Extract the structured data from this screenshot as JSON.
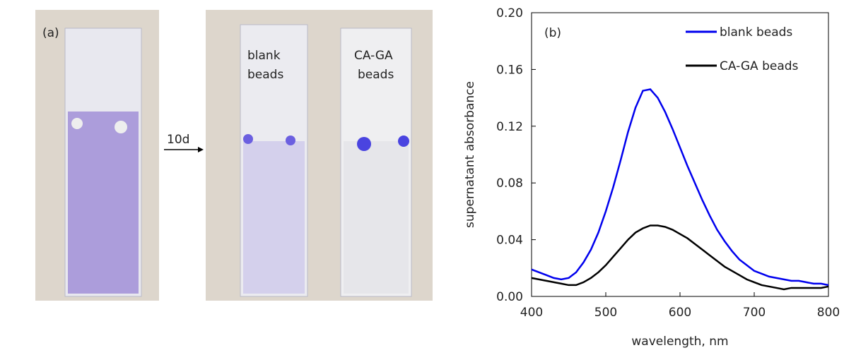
{
  "panel_a": {
    "label": "(a)",
    "arrow_label": "10d",
    "sample_1": [
      "blank",
      "beads"
    ],
    "sample_2": [
      "CA-GA",
      "beads"
    ]
  },
  "chart_data": {
    "type": "line",
    "panel_label": "(b)",
    "x_label": "wavelength, nm",
    "y_label": "supernatant absorbance",
    "xlim": [
      400,
      800
    ],
    "xticks": [
      400,
      500,
      600,
      700,
      800
    ],
    "ylim": [
      0,
      0.2
    ],
    "yticks": [
      {
        "value": 0,
        "label": "0.00"
      },
      {
        "value": 0.04,
        "label": "0.04"
      },
      {
        "value": 0.08,
        "label": "0.08"
      },
      {
        "value": 0.12,
        "label": "0.12"
      },
      {
        "value": 0.16,
        "label": "0.16"
      },
      {
        "value": 0.2,
        "label": "0.20"
      }
    ],
    "legend": "upper right",
    "x": [
      400,
      410,
      420,
      430,
      440,
      450,
      460,
      470,
      480,
      490,
      500,
      510,
      520,
      530,
      540,
      550,
      560,
      570,
      580,
      590,
      600,
      610,
      620,
      630,
      640,
      650,
      660,
      670,
      680,
      690,
      700,
      710,
      720,
      730,
      740,
      750,
      760,
      770,
      780,
      790,
      800
    ],
    "series": [
      {
        "name": "blank beads",
        "color": "#0000ee",
        "values": [
          0.019,
          0.017,
          0.015,
          0.013,
          0.012,
          0.013,
          0.017,
          0.024,
          0.033,
          0.045,
          0.06,
          0.077,
          0.096,
          0.116,
          0.133,
          0.145,
          0.146,
          0.14,
          0.13,
          0.118,
          0.105,
          0.092,
          0.08,
          0.068,
          0.057,
          0.047,
          0.039,
          0.032,
          0.026,
          0.022,
          0.018,
          0.016,
          0.014,
          0.013,
          0.012,
          0.011,
          0.011,
          0.01,
          0.009,
          0.009,
          0.008
        ]
      },
      {
        "name": "CA-GA beads",
        "color": "#000000",
        "values": [
          0.013,
          0.012,
          0.011,
          0.01,
          0.009,
          0.008,
          0.008,
          0.01,
          0.013,
          0.017,
          0.022,
          0.028,
          0.034,
          0.04,
          0.045,
          0.048,
          0.05,
          0.05,
          0.049,
          0.047,
          0.044,
          0.041,
          0.037,
          0.033,
          0.029,
          0.025,
          0.021,
          0.018,
          0.015,
          0.012,
          0.01,
          0.008,
          0.007,
          0.006,
          0.005,
          0.006,
          0.006,
          0.006,
          0.006,
          0.006,
          0.007
        ]
      }
    ]
  }
}
